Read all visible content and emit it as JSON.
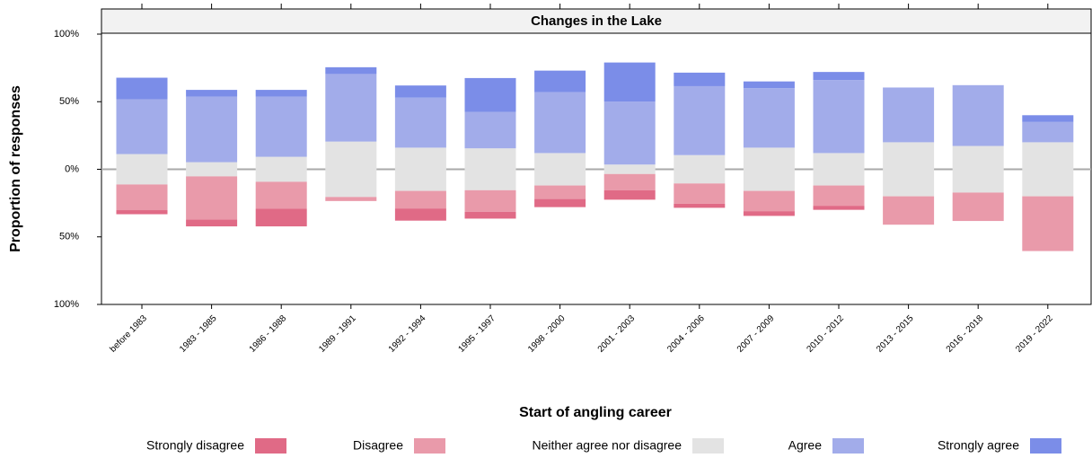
{
  "chart_data": {
    "type": "diverging-stacked-bar",
    "title": "Changes in the Lake",
    "x_label": "Start of angling career",
    "y_label": "Proportion of responses",
    "categories": [
      "before 1983",
      "1983 - 1985",
      "1986 - 1988",
      "1989 - 1991",
      "1992 - 1994",
      "1995 - 1997",
      "1998 - 2000",
      "2001 - 2003",
      "2004 - 2006",
      "2007 - 2009",
      "2010 - 2012",
      "2013 - 2015",
      "2016 - 2018",
      "2019 - 2022"
    ],
    "series": [
      {
        "name": "Strongly disagree",
        "color": "#e06a86",
        "values": [
          3,
          5,
          13,
          0,
          9,
          5,
          6,
          7,
          3,
          3.5,
          3,
          0,
          0,
          0
        ]
      },
      {
        "name": "Disagree",
        "color": "#e99aaa",
        "values": [
          19,
          32,
          20,
          3,
          13,
          16,
          10,
          12,
          15,
          15,
          15,
          21,
          21,
          40.5
        ]
      },
      {
        "name": "Neither agree nor disagree",
        "color": "#e3e3e3",
        "values": [
          22.5,
          10.5,
          18.5,
          41,
          32,
          31,
          24,
          7,
          21,
          32,
          24,
          40,
          34.5,
          40
        ]
      },
      {
        "name": "Agree",
        "color": "#a2acea",
        "values": [
          40.5,
          48.5,
          44.5,
          50,
          37,
          27,
          45,
          46.5,
          51,
          44,
          54,
          40.5,
          45,
          15
        ]
      },
      {
        "name": "Strongly agree",
        "color": "#7b8de8",
        "values": [
          16,
          5,
          5,
          5,
          9,
          25,
          16,
          29,
          10,
          5,
          6,
          0,
          0,
          5
        ]
      }
    ],
    "ylim": [
      -100,
      100
    ],
    "yticks": [
      {
        "value": -100,
        "label": "100%"
      },
      {
        "value": -50,
        "label": "50%"
      },
      {
        "value": 0,
        "label": "0%"
      },
      {
        "value": 50,
        "label": "50%"
      },
      {
        "value": 100,
        "label": "100%"
      }
    ]
  }
}
